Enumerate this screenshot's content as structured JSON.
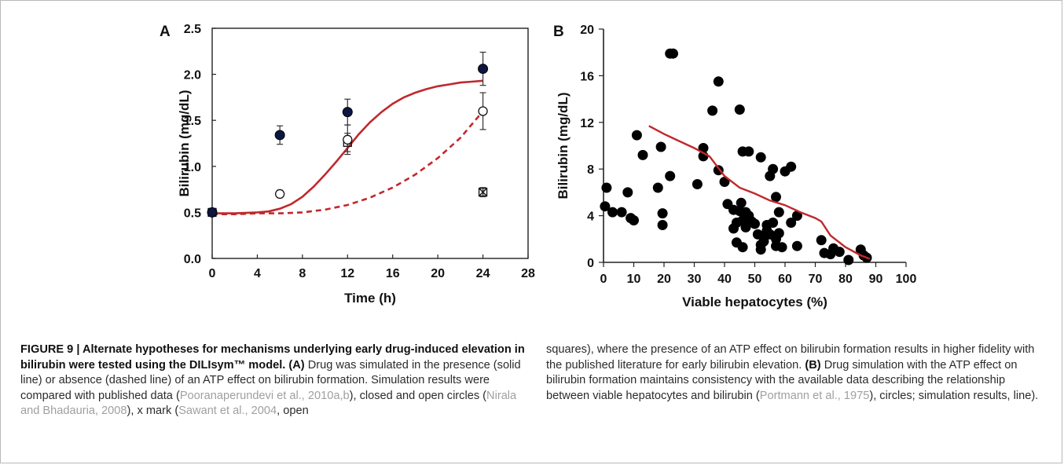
{
  "colors": {
    "model_line": "#c0282c",
    "closed_circle_fill": "#0c1641",
    "marker": "#111111",
    "caption_ref": "#a0a0a0"
  },
  "chart_data": [
    {
      "panel": "A",
      "type": "line",
      "xlabel": "Time (h)",
      "ylabel": "Bilirubin (mg/dL)",
      "xlim": [
        0,
        28
      ],
      "ylim": [
        0,
        2.5
      ],
      "xticks": [
        0,
        4,
        8,
        12,
        16,
        20,
        24,
        28
      ],
      "yticks": [
        "0.0",
        "0.5",
        "1.0",
        "1.5",
        "2.0",
        "2.5"
      ],
      "grid": false,
      "series": [
        {
          "style": "solid",
          "x": [
            0,
            2,
            4,
            5,
            6,
            7,
            8,
            9,
            10,
            11,
            12,
            13,
            14,
            15,
            16,
            17,
            18,
            19,
            20,
            21,
            22,
            23,
            24
          ],
          "y": [
            0.49,
            0.49,
            0.5,
            0.51,
            0.54,
            0.59,
            0.67,
            0.78,
            0.91,
            1.05,
            1.2,
            1.35,
            1.48,
            1.59,
            1.68,
            1.75,
            1.8,
            1.84,
            1.87,
            1.89,
            1.91,
            1.92,
            1.93
          ]
        },
        {
          "style": "dashed",
          "x": [
            0,
            2,
            4,
            6,
            8,
            10,
            12,
            14,
            16,
            18,
            20,
            22,
            24
          ],
          "y": [
            0.48,
            0.48,
            0.49,
            0.49,
            0.5,
            0.53,
            0.58,
            0.66,
            0.77,
            0.91,
            1.09,
            1.31,
            1.6
          ]
        },
        {
          "marker": "closed-circle",
          "points": [
            [
              0,
              0.5,
              0
            ],
            [
              6,
              1.34,
              0.1
            ],
            [
              12,
              1.59,
              0.14
            ],
            [
              24,
              2.06,
              0.18
            ]
          ]
        },
        {
          "marker": "open-circle",
          "points": [
            [
              0,
              0.5,
              0
            ],
            [
              6,
              0.7,
              0.04
            ],
            [
              12,
              1.29,
              0.16
            ],
            [
              24,
              1.6,
              0.2
            ]
          ]
        },
        {
          "marker": "x-mark",
          "points": [
            [
              0,
              0.5,
              0
            ],
            [
              24,
              0.72,
              0.04
            ]
          ]
        },
        {
          "marker": "open-square",
          "points": [
            [
              0,
              0.5,
              0
            ],
            [
              12,
              1.26,
              0.1
            ],
            [
              24,
              0.72,
              0.05
            ]
          ]
        }
      ]
    },
    {
      "panel": "B",
      "type": "scatter",
      "xlabel": "Viable hepatocytes (%)",
      "ylabel": "Bilirubin (mg/dL)",
      "xlim": [
        0,
        100
      ],
      "ylim": [
        0,
        20
      ],
      "xticks": [
        0,
        10,
        20,
        30,
        40,
        50,
        60,
        70,
        80,
        90,
        100
      ],
      "yticks": [
        0,
        4,
        8,
        12,
        16,
        20
      ],
      "grid": false,
      "points": [
        [
          1,
          6.4
        ],
        [
          0.5,
          4.8
        ],
        [
          3,
          4.3
        ],
        [
          6,
          4.3
        ],
        [
          8,
          6.0
        ],
        [
          9,
          3.8
        ],
        [
          10,
          3.6
        ],
        [
          11,
          10.9
        ],
        [
          13,
          9.2
        ],
        [
          18,
          6.4
        ],
        [
          19,
          9.9
        ],
        [
          19.5,
          4.2
        ],
        [
          19.5,
          3.2
        ],
        [
          22,
          7.4
        ],
        [
          22,
          17.9
        ],
        [
          23,
          17.9
        ],
        [
          31,
          6.7
        ],
        [
          33,
          9.8
        ],
        [
          33,
          9.1
        ],
        [
          36,
          13.0
        ],
        [
          38,
          15.5
        ],
        [
          38,
          7.9
        ],
        [
          40,
          6.9
        ],
        [
          41,
          5.0
        ],
        [
          43,
          4.5
        ],
        [
          43,
          2.9
        ],
        [
          44,
          3.4
        ],
        [
          44,
          1.7
        ],
        [
          45,
          13.1
        ],
        [
          45,
          4.4
        ],
        [
          45.5,
          5.1
        ],
        [
          46,
          9.5
        ],
        [
          46,
          1.3
        ],
        [
          46,
          3.6
        ],
        [
          47,
          4.3
        ],
        [
          47,
          3.0
        ],
        [
          48,
          9.5
        ],
        [
          48,
          4.0
        ],
        [
          48,
          3.6
        ],
        [
          49,
          3.5
        ],
        [
          50,
          3.3
        ],
        [
          51,
          2.4
        ],
        [
          52,
          1.5
        ],
        [
          52,
          9.0
        ],
        [
          52,
          1.1
        ],
        [
          53,
          2.2
        ],
        [
          53,
          1.8
        ],
        [
          54,
          3.2
        ],
        [
          54,
          2.7
        ],
        [
          55,
          2.4
        ],
        [
          55,
          7.4
        ],
        [
          56,
          8.0
        ],
        [
          56,
          3.4
        ],
        [
          57,
          5.6
        ],
        [
          57,
          2.0
        ],
        [
          57,
          1.4
        ],
        [
          58,
          4.3
        ],
        [
          58,
          2.5
        ],
        [
          59,
          1.3
        ],
        [
          60,
          7.8
        ],
        [
          62,
          8.2
        ],
        [
          62,
          3.4
        ],
        [
          64,
          4.0
        ],
        [
          64,
          1.4
        ],
        [
          72,
          1.9
        ],
        [
          73,
          0.8
        ],
        [
          75,
          0.7
        ],
        [
          76,
          1.2
        ],
        [
          78,
          0.9
        ],
        [
          81,
          0.2
        ],
        [
          85,
          1.1
        ],
        [
          86,
          0.6
        ],
        [
          87,
          0.4
        ]
      ],
      "line": {
        "x": [
          15,
          20,
          25,
          30,
          35,
          40,
          45,
          50,
          55,
          60,
          65,
          70,
          72,
          75,
          80,
          85,
          88
        ],
        "y": [
          11.7,
          11.0,
          10.4,
          9.8,
          9.1,
          7.4,
          6.4,
          5.9,
          5.3,
          4.9,
          4.3,
          3.8,
          3.5,
          2.3,
          1.3,
          0.6,
          0.3
        ]
      }
    }
  ],
  "caption": {
    "label": "FIGURE 9 | Alternate hypotheses for mechanisms underlying early drug-induced elevation in bilirubin were tested using the DILIsym™ model.",
    "a_label": "(A)",
    "a_text1": "Drug was simulated in the presence (solid line) or absence (dashed line) of an ATP effect on bilirubin formation. Simulation results were compared with published data (",
    "ref1": "Pooranaperundevi et al., 2010a,b",
    "a_text2": "), closed and open circles (",
    "ref2": "Nirala and Bhadauria, 2008",
    "a_text3": "), x mark (",
    "ref3": "Sawant et al., 2004",
    "a_text4": ", open squares), where the presence of an ATP effect on bilirubin formation results in higher fidelity with the published literature for early bilirubin elevation.",
    "b_label": "(B)",
    "b_text1": "Drug simulation with the ATP effect on bilirubin formation maintains consistency with the available data describing the relationship between viable hepatocytes and bilirubin (",
    "ref4": "Portmann et al., 1975",
    "b_text2": "), circles; simulation results, line)."
  }
}
